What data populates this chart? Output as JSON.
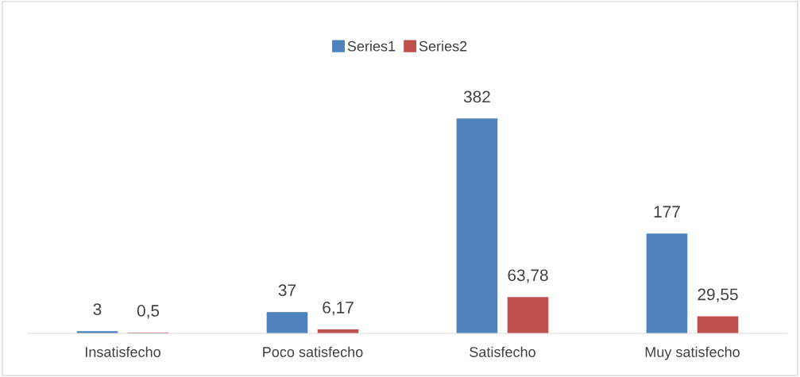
{
  "chart_data": {
    "type": "bar",
    "categories": [
      "Insatisfecho",
      "Poco satisfecho",
      "Satisfecho",
      "Muy satisfecho"
    ],
    "series": [
      {
        "name": "Series1",
        "color": "#4f81bd",
        "values": [
          3,
          37,
          382,
          177
        ],
        "value_labels": [
          "3",
          "37",
          "382",
          "177"
        ]
      },
      {
        "name": "Series2",
        "color": "#c0504d",
        "values": [
          0.5,
          6.17,
          63.78,
          29.55
        ],
        "value_labels": [
          "0,5",
          "6,17",
          "63,78",
          "29,55"
        ]
      }
    ],
    "legend": "top"
  }
}
